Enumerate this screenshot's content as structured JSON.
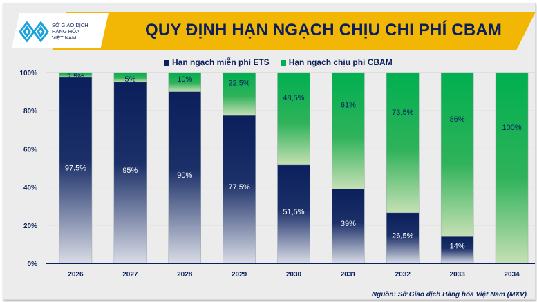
{
  "logo": {
    "text": "SỞ GIAO DỊCH HÀNG HÓA VIỆT NAM",
    "lines": [
      "SỞ GIAO DỊCH",
      "HÀNG HÓA",
      "VIỆT NAM"
    ]
  },
  "source": "Nguồn: Sở Giao dịch Hàng hóa Việt Nam (MXV)",
  "colors": {
    "ets": "#0b1f5c",
    "cbam": "#00b050",
    "banner": "#f2b705"
  },
  "chart_data": {
    "type": "bar",
    "stacked": true,
    "title": "QUY ĐỊNH HẠN NGẠCH CHỊU CHI PHÍ CBAM",
    "categories": [
      "2026",
      "2027",
      "2028",
      "2029",
      "2030",
      "2031",
      "2032",
      "2033",
      "2034"
    ],
    "series": [
      {
        "name": "Hạn ngạch miễn phí ETS",
        "values": [
          97.5,
          95,
          90,
          77.5,
          51.5,
          39,
          26.5,
          14,
          0
        ],
        "labels": [
          "97,5%",
          "95%",
          "90%",
          "77,5%",
          "51,5%",
          "39%",
          "26,5%",
          "14%",
          ""
        ]
      },
      {
        "name": "Hạn ngạch chịu phí CBAM",
        "values": [
          2.5,
          5,
          10,
          22.5,
          48.5,
          61,
          73.5,
          86,
          100
        ],
        "labels": [
          "2,5%",
          "5%",
          "10%",
          "22,5%",
          "48,5%",
          "61%",
          "73,5%",
          "86%",
          "100%"
        ]
      }
    ],
    "yticks": [
      "0%",
      "20%",
      "40%",
      "60%",
      "80%",
      "100%"
    ],
    "ylim": [
      0,
      100
    ],
    "grid": true,
    "legend": "top"
  }
}
